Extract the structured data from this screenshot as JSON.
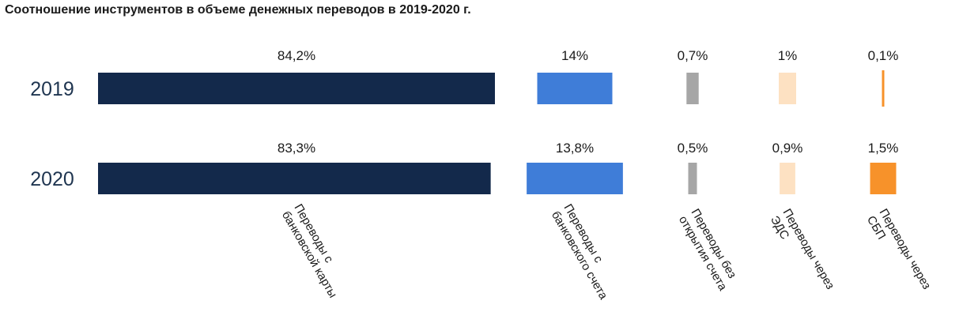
{
  "title": "Соотношение инструментов в объеме денежных переводов в 2019-2020 г.",
  "chart_data": {
    "type": "bar",
    "title": "Соотношение инструментов в объеме денежных переводов в 2019-2020 г.",
    "unit": "%",
    "categories": [
      [
        "Переводы с",
        "банковской карты"
      ],
      [
        "Переводы с",
        "банковского счета"
      ],
      [
        "Переводы без",
        "открытия счета"
      ],
      [
        "Переводы через",
        "ЭДС"
      ],
      [
        "Переводы через",
        "СБП"
      ]
    ],
    "series": [
      {
        "name": "2019",
        "values": [
          84.2,
          14,
          0.7,
          1,
          0.1
        ],
        "labels": [
          "84,2%",
          "14%",
          "0,7%",
          "1%",
          "0,1%"
        ]
      },
      {
        "name": "2020",
        "values": [
          83.3,
          13.8,
          0.5,
          0.9,
          1.5
        ],
        "labels": [
          "83,3%",
          "13,8%",
          "0,5%",
          "0,9%",
          "1,5%"
        ]
      }
    ],
    "colors": [
      "#13294b",
      "#3f7dd8",
      "#a6a6a6",
      "#fde1c2",
      "#f7922a"
    ],
    "grid": false,
    "legend": "none"
  }
}
